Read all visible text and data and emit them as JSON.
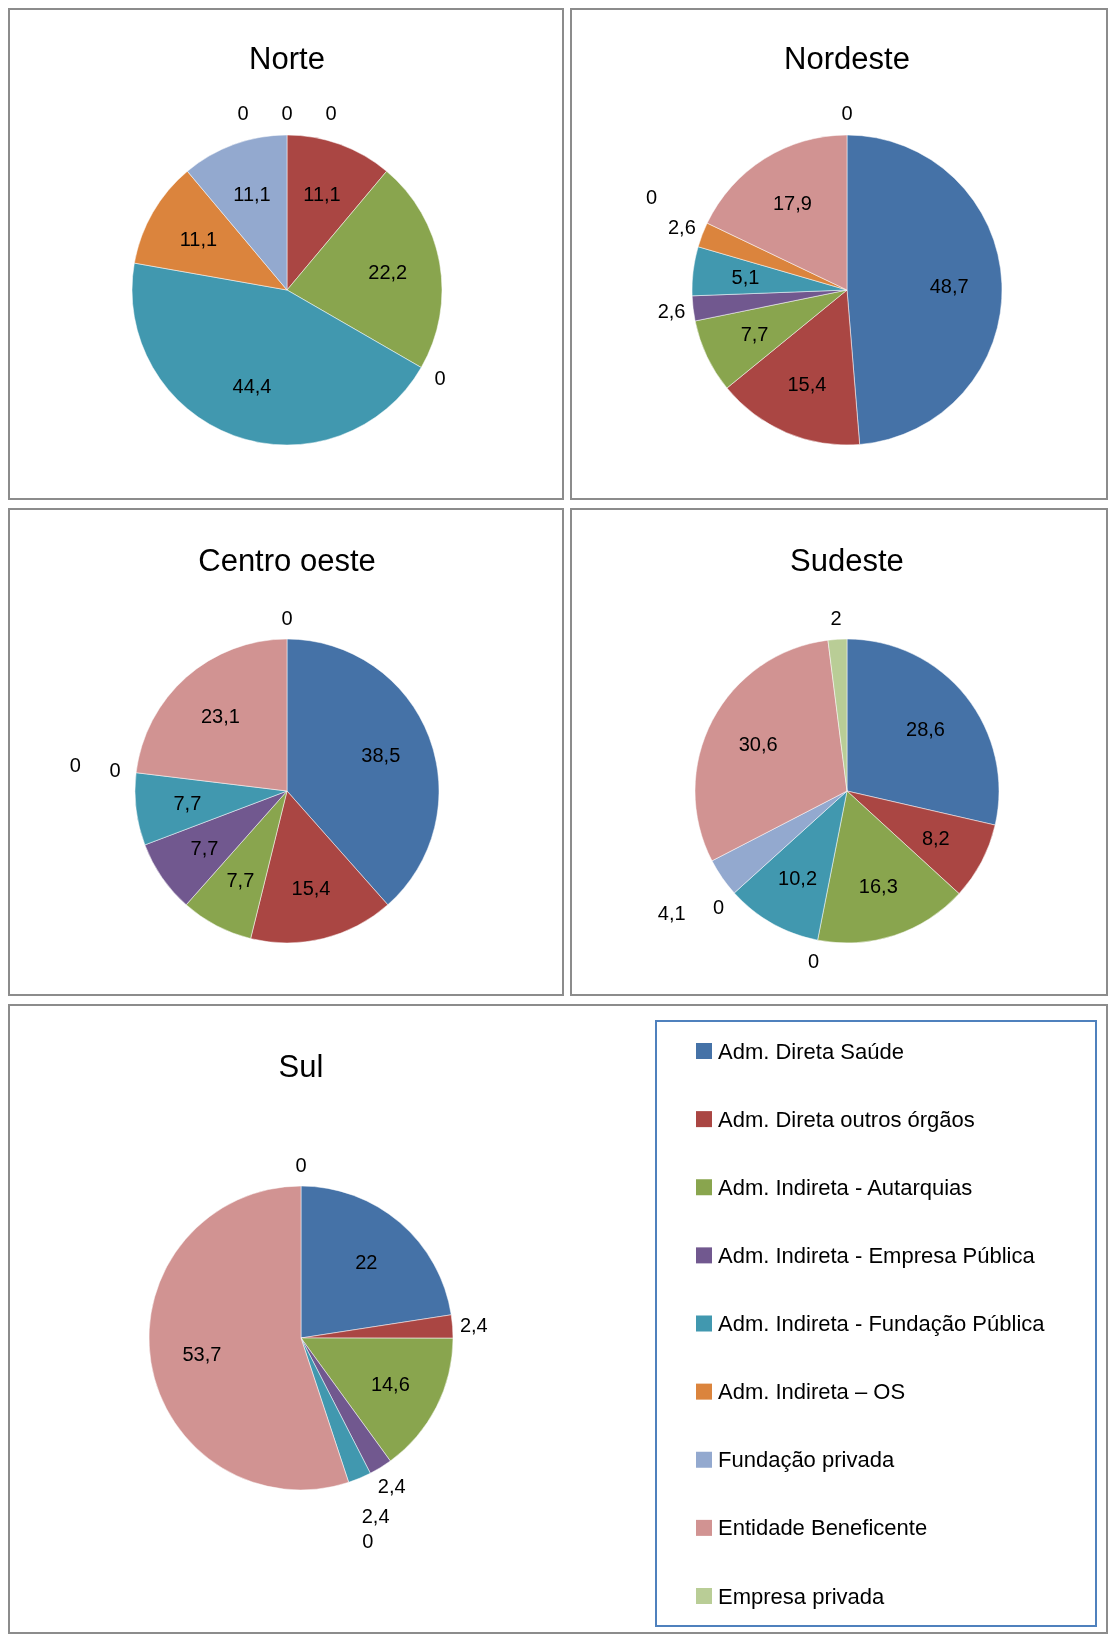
{
  "chart_data": [
    {
      "type": "pie",
      "title": "Norte",
      "categories": [
        null,
        null,
        null,
        null,
        null,
        null,
        null,
        null,
        null
      ],
      "values": [
        0,
        11.1,
        22.2,
        0,
        44.4,
        11.1,
        11.1,
        0,
        0
      ],
      "value_labels": [
        "0",
        "11,1",
        "22,2",
        "0",
        "44,4",
        "11,1",
        "11,1",
        "0",
        "0"
      ],
      "colors": [
        "#4572a7",
        "#aa4643",
        "#89a54e",
        "#71588f",
        "#4198af",
        "#db843d",
        "#93a9cf",
        "#d19392",
        "#b9cd96"
      ]
    },
    {
      "type": "pie",
      "title": "Nordeste",
      "categories": [
        null,
        null,
        null,
        null,
        null,
        null,
        null,
        null,
        null
      ],
      "values": [
        48.7,
        15.4,
        7.7,
        2.6,
        5.1,
        2.6,
        0,
        17.9,
        0
      ],
      "value_labels": [
        "48,7",
        "15,4",
        "7,7",
        "2,6",
        "5,1",
        "2,6",
        "0",
        "17,9",
        "0"
      ],
      "colors": [
        "#4572a7",
        "#aa4643",
        "#89a54e",
        "#71588f",
        "#4198af",
        "#db843d",
        "#93a9cf",
        "#d19392",
        "#b9cd96"
      ]
    },
    {
      "type": "pie",
      "title": "Centro oeste",
      "categories": [
        null,
        null,
        null,
        null,
        null,
        null,
        null,
        null,
        null
      ],
      "values": [
        38.5,
        15.4,
        7.7,
        7.7,
        7.7,
        0,
        0,
        23.1,
        0
      ],
      "value_labels": [
        "38,5",
        "15,4",
        "7,7",
        "7,7",
        "7,7",
        "0",
        "0",
        "23,1",
        "0"
      ],
      "colors": [
        "#4572a7",
        "#aa4643",
        "#89a54e",
        "#71588f",
        "#4198af",
        "#db843d",
        "#93a9cf",
        "#d19392",
        "#b9cd96"
      ]
    },
    {
      "type": "pie",
      "title": "Sudeste",
      "categories": [
        null,
        null,
        null,
        null,
        null,
        null,
        null,
        null,
        null
      ],
      "values": [
        28.6,
        8.2,
        16.3,
        0,
        10.2,
        0,
        4.1,
        30.6,
        2
      ],
      "value_labels": [
        "28,6",
        "8,2",
        "16,3",
        "0",
        "10,2",
        "0",
        "4,1",
        "30,6",
        "2"
      ],
      "colors": [
        "#4572a7",
        "#aa4643",
        "#89a54e",
        "#71588f",
        "#4198af",
        "#db843d",
        "#93a9cf",
        "#d19392",
        "#b9cd96"
      ]
    },
    {
      "type": "pie",
      "title": "Sul",
      "categories": [
        "Adm. Direta Saúde",
        "Adm. Direta outros órgãos",
        "Adm. Indireta - Autarquias",
        "Adm. Indireta - Empresa Pública",
        "Adm. Indireta - Fundação Pública",
        "Adm. Indireta – OS",
        "Fundação privada",
        "Entidade Beneficente",
        "Empresa privada"
      ],
      "values": [
        22,
        2.4,
        14.6,
        2.4,
        2.4,
        0,
        0,
        53.7,
        0
      ],
      "value_labels": [
        "22",
        "2,4",
        "14,6",
        "2,4",
        "2,4",
        "0",
        null,
        "53,7",
        "0"
      ],
      "colors": [
        "#4572a7",
        "#aa4643",
        "#89a54e",
        "#71588f",
        "#4198af",
        "#db843d",
        "#93a9cf",
        "#d19392",
        "#b9cd96"
      ],
      "legend": "right"
    }
  ]
}
